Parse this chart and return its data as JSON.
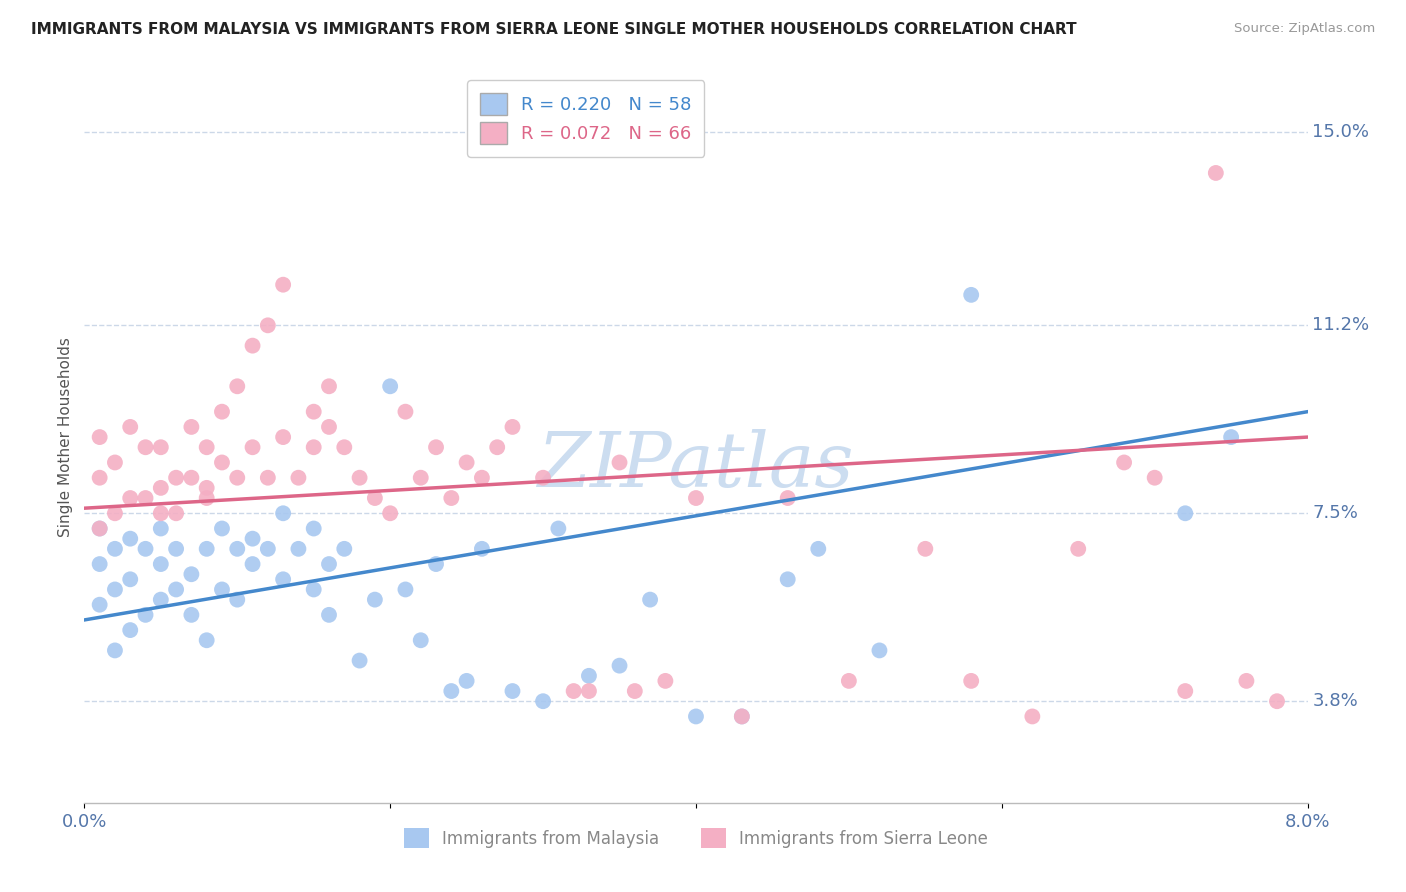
{
  "title": "IMMIGRANTS FROM MALAYSIA VS IMMIGRANTS FROM SIERRA LEONE SINGLE MOTHER HOUSEHOLDS CORRELATION CHART",
  "source": "Source: ZipAtlas.com",
  "ylabel": "Single Mother Households",
  "xlim": [
    0.0,
    0.08
  ],
  "ylim": [
    0.018,
    0.162
  ],
  "yticks": [
    0.038,
    0.075,
    0.112,
    0.15
  ],
  "ytick_labels": [
    "3.8%",
    "7.5%",
    "11.2%",
    "15.0%"
  ],
  "xticks": [
    0.0,
    0.02,
    0.04,
    0.06,
    0.08
  ],
  "xtick_labels": [
    "0.0%",
    "",
    "",
    "",
    "8.0%"
  ],
  "malaysia_R": 0.22,
  "malaysia_N": 58,
  "sierraleone_R": 0.072,
  "sierraleone_N": 66,
  "malaysia_color": "#a8c8f0",
  "sierraleone_color": "#f4afc4",
  "malaysia_line_color": "#4488cc",
  "sierraleone_line_color": "#dd6688",
  "background_color": "#ffffff",
  "grid_color": "#ccd8e8",
  "title_color": "#222222",
  "axis_label_color": "#5577aa",
  "watermark_color": "#ccddf0",
  "malaysia_x": [
    0.001,
    0.001,
    0.001,
    0.002,
    0.002,
    0.002,
    0.003,
    0.003,
    0.003,
    0.004,
    0.004,
    0.005,
    0.005,
    0.005,
    0.006,
    0.006,
    0.007,
    0.007,
    0.008,
    0.008,
    0.009,
    0.009,
    0.01,
    0.01,
    0.011,
    0.011,
    0.012,
    0.013,
    0.013,
    0.014,
    0.015,
    0.015,
    0.016,
    0.016,
    0.017,
    0.018,
    0.019,
    0.02,
    0.021,
    0.022,
    0.023,
    0.024,
    0.025,
    0.026,
    0.028,
    0.03,
    0.031,
    0.033,
    0.035,
    0.037,
    0.04,
    0.043,
    0.046,
    0.048,
    0.052,
    0.058,
    0.072,
    0.075
  ],
  "malaysia_y": [
    0.057,
    0.065,
    0.072,
    0.048,
    0.06,
    0.068,
    0.052,
    0.062,
    0.07,
    0.055,
    0.068,
    0.058,
    0.065,
    0.072,
    0.06,
    0.068,
    0.055,
    0.063,
    0.05,
    0.068,
    0.06,
    0.072,
    0.058,
    0.068,
    0.065,
    0.07,
    0.068,
    0.062,
    0.075,
    0.068,
    0.06,
    0.072,
    0.055,
    0.065,
    0.068,
    0.046,
    0.058,
    0.1,
    0.06,
    0.05,
    0.065,
    0.04,
    0.042,
    0.068,
    0.04,
    0.038,
    0.072,
    0.043,
    0.045,
    0.058,
    0.035,
    0.035,
    0.062,
    0.068,
    0.048,
    0.118,
    0.075,
    0.09
  ],
  "sierraleone_x": [
    0.001,
    0.001,
    0.001,
    0.002,
    0.002,
    0.003,
    0.003,
    0.004,
    0.004,
    0.005,
    0.005,
    0.005,
    0.006,
    0.006,
    0.007,
    0.007,
    0.008,
    0.008,
    0.008,
    0.009,
    0.009,
    0.01,
    0.01,
    0.011,
    0.011,
    0.012,
    0.012,
    0.013,
    0.013,
    0.014,
    0.015,
    0.015,
    0.016,
    0.016,
    0.017,
    0.018,
    0.019,
    0.02,
    0.021,
    0.022,
    0.023,
    0.024,
    0.025,
    0.026,
    0.027,
    0.028,
    0.03,
    0.032,
    0.033,
    0.035,
    0.036,
    0.038,
    0.04,
    0.043,
    0.046,
    0.05,
    0.055,
    0.058,
    0.062,
    0.065,
    0.068,
    0.07,
    0.072,
    0.074,
    0.076,
    0.078
  ],
  "sierraleone_y": [
    0.082,
    0.072,
    0.09,
    0.075,
    0.085,
    0.078,
    0.092,
    0.078,
    0.088,
    0.08,
    0.075,
    0.088,
    0.075,
    0.082,
    0.082,
    0.092,
    0.08,
    0.088,
    0.078,
    0.085,
    0.095,
    0.082,
    0.1,
    0.088,
    0.108,
    0.082,
    0.112,
    0.09,
    0.12,
    0.082,
    0.088,
    0.095,
    0.092,
    0.1,
    0.088,
    0.082,
    0.078,
    0.075,
    0.095,
    0.082,
    0.088,
    0.078,
    0.085,
    0.082,
    0.088,
    0.092,
    0.082,
    0.04,
    0.04,
    0.085,
    0.04,
    0.042,
    0.078,
    0.035,
    0.078,
    0.042,
    0.068,
    0.042,
    0.035,
    0.068,
    0.085,
    0.082,
    0.04,
    0.142,
    0.042,
    0.038
  ]
}
